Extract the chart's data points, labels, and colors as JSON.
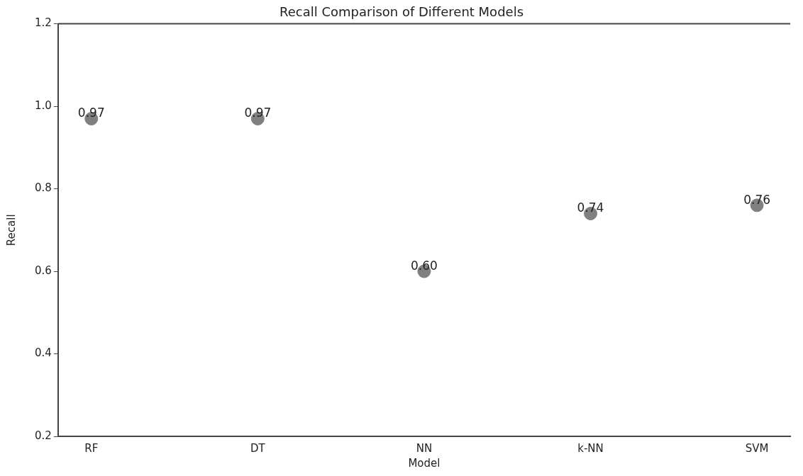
{
  "chart_data": {
    "type": "scatter",
    "title": "Recall Comparison of Different Models",
    "xlabel": "Model",
    "ylabel": "Recall",
    "categories": [
      "RF",
      "DT",
      "NN",
      "k-NN",
      "SVM"
    ],
    "values": [
      0.97,
      0.97,
      0.6,
      0.74,
      0.76
    ],
    "value_labels": [
      "0.97",
      "0.97",
      "0.60",
      "0.74",
      "0.76"
    ],
    "color": "#808080",
    "marker": "circle",
    "grid": false,
    "legend": false,
    "ylim": [
      0.2,
      1.2
    ],
    "yticks": [
      0.2,
      0.4,
      0.6,
      0.8,
      {
        "value": 1,
        "label": "1.0"
      },
      1.2
    ]
  }
}
